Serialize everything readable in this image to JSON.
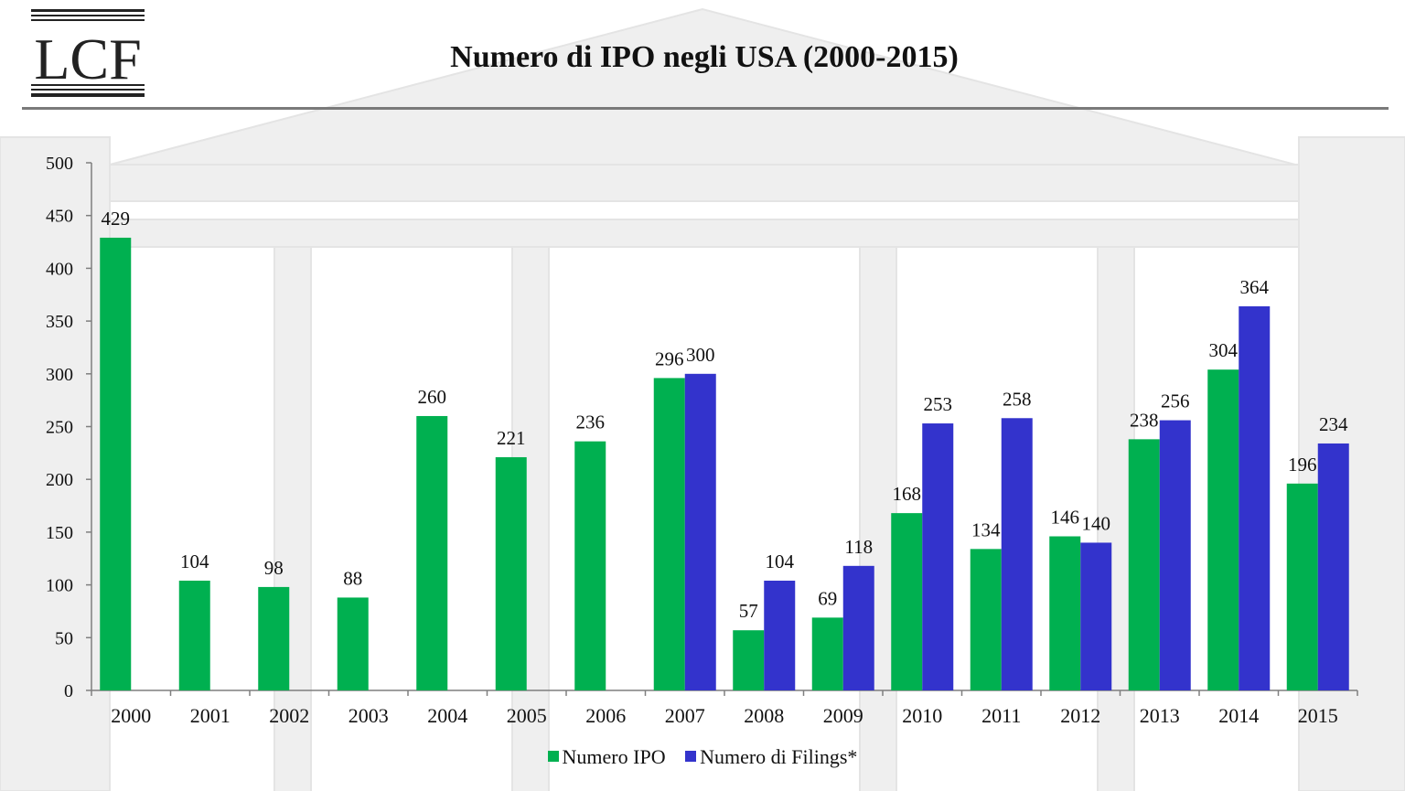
{
  "header": {
    "logo_text": "LCF",
    "title": "Numero di IPO negli USA (2000-2015)"
  },
  "colors": {
    "ipo": "#00b050",
    "filings": "#3333cc",
    "axis": "#7f7f7f",
    "rule": "#7a7a7a"
  },
  "chart_data": {
    "type": "bar",
    "title": "Numero di IPO negli USA (2000-2015)",
    "categories": [
      "2000",
      "2001",
      "2002",
      "2003",
      "2004",
      "2005",
      "2006",
      "2007",
      "2008",
      "2009",
      "2010",
      "2011",
      "2012",
      "2013",
      "2014",
      "2015"
    ],
    "series": [
      {
        "name": "Numero IPO",
        "values": [
          429,
          104,
          98,
          88,
          260,
          221,
          236,
          296,
          57,
          69,
          168,
          134,
          146,
          238,
          304,
          196
        ]
      },
      {
        "name": "Numero di Filings*",
        "values": [
          null,
          null,
          null,
          null,
          null,
          null,
          null,
          300,
          104,
          118,
          253,
          258,
          140,
          256,
          364,
          234
        ]
      }
    ],
    "ylim": [
      0,
      500
    ],
    "yticks": [
      0,
      50,
      100,
      150,
      200,
      250,
      300,
      350,
      400,
      450,
      500
    ],
    "grid": false,
    "legend": "bottom-center",
    "data_labels": true
  }
}
